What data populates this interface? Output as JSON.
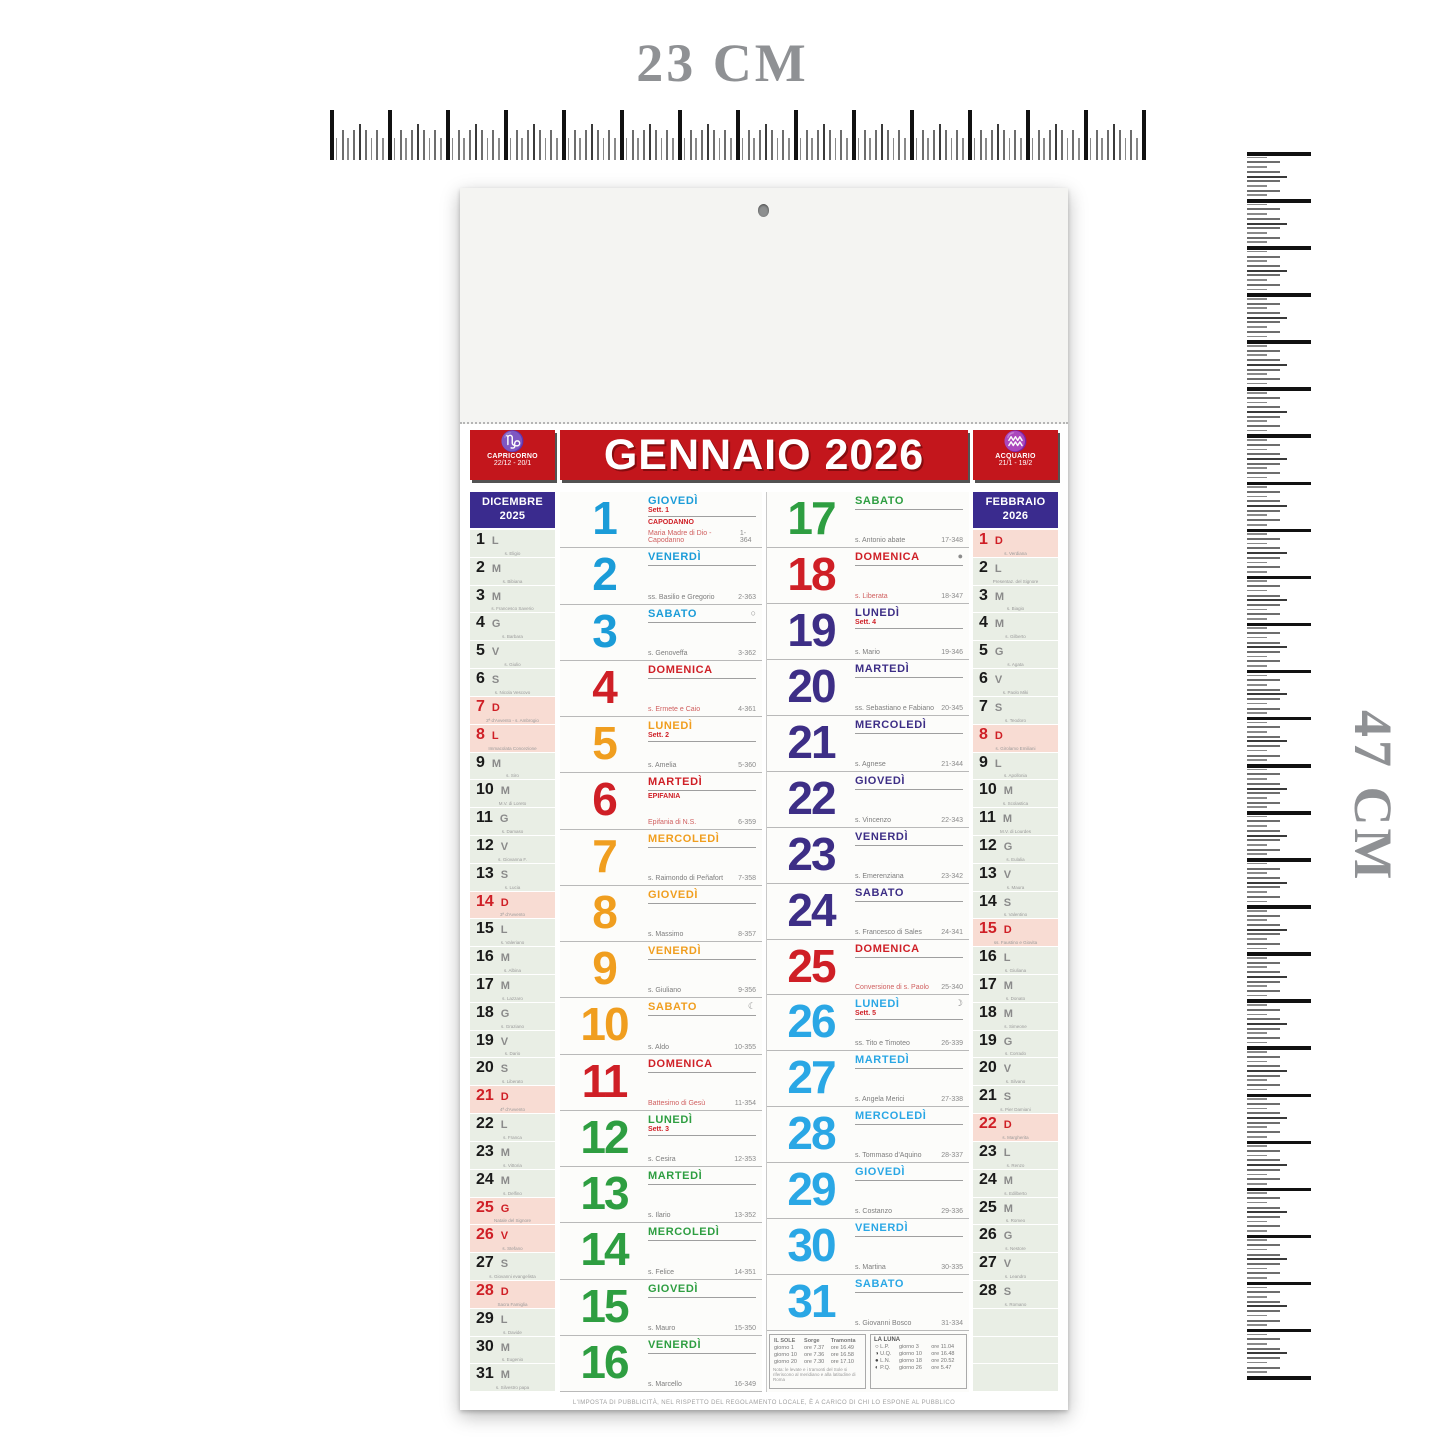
{
  "measurements": {
    "top_label": "23 CM",
    "side_label": "47 CM"
  },
  "colors": {
    "blue": "#1b9cd8",
    "orange": "#f09e1f",
    "green": "#2e9e41",
    "purple": "#3d2e86",
    "cyan": "#2aa7e5",
    "red": "#cf1f26",
    "banner_red": "#c3161c",
    "side_header_purple": "#3a2b8e",
    "side_cell_green": "#e9eee5",
    "side_cell_pink": "#f8dcd3"
  },
  "calendar": {
    "title": "GENNAIO 2026",
    "zodiac_left": {
      "symbol": "♑",
      "name": "CAPRICORNO",
      "dates": "22/12 - 20/1"
    },
    "zodiac_right": {
      "symbol": "♒",
      "name": "ACQUARIO",
      "dates": "21/1 - 19/2"
    },
    "footer": "L'IMPOSTA DI PUBBLICITÀ, NEL RISPETTO DEL REGOLAMENTO LOCALE, È A CARICO DI CHI LO ESPONE AL PUBBLICO",
    "days": [
      {
        "n": 1,
        "name": "GIOVEDÌ",
        "color": "blue",
        "week": "Sett. 1",
        "holiday": "CAPODANNO",
        "saint": "Maria Madre di Dio - Capodanno",
        "count": "1-364",
        "red_saint": true
      },
      {
        "n": 2,
        "name": "VENERDÌ",
        "color": "blue",
        "saint": "ss. Basilio e Gregorio",
        "count": "2-363"
      },
      {
        "n": 3,
        "name": "SABATO",
        "color": "blue",
        "moon": "○",
        "saint": "s. Genoveffa",
        "count": "3-362"
      },
      {
        "n": 4,
        "name": "DOMENICA",
        "color": "red",
        "saint": "s. Ermete e Caio",
        "count": "4-361",
        "red_saint": true
      },
      {
        "n": 5,
        "name": "LUNEDÌ",
        "color": "orange",
        "week": "Sett. 2",
        "saint": "s. Amelia",
        "count": "5-360"
      },
      {
        "n": 6,
        "name": "MARTEDÌ",
        "color": "red",
        "holiday": "EPIFANIA",
        "saint": "Epifania di N.S.",
        "count": "6-359",
        "red_saint": true
      },
      {
        "n": 7,
        "name": "MERCOLEDÌ",
        "color": "orange",
        "saint": "s. Raimondo di Peñafort",
        "count": "7-358"
      },
      {
        "n": 8,
        "name": "GIOVEDÌ",
        "color": "orange",
        "saint": "s. Massimo",
        "count": "8-357"
      },
      {
        "n": 9,
        "name": "VENERDÌ",
        "color": "orange",
        "saint": "s. Giuliano",
        "count": "9-356"
      },
      {
        "n": 10,
        "name": "SABATO",
        "color": "orange",
        "moon": "☾",
        "saint": "s. Aldo",
        "count": "10-355"
      },
      {
        "n": 11,
        "name": "DOMENICA",
        "color": "red",
        "saint": "Battesimo di Gesù",
        "count": "11-354",
        "red_saint": true
      },
      {
        "n": 12,
        "name": "LUNEDÌ",
        "color": "green",
        "week": "Sett. 3",
        "saint": "s. Cesira",
        "count": "12-353"
      },
      {
        "n": 13,
        "name": "MARTEDÌ",
        "color": "green",
        "saint": "s. Ilario",
        "count": "13-352"
      },
      {
        "n": 14,
        "name": "MERCOLEDÌ",
        "color": "green",
        "saint": "s. Felice",
        "count": "14-351"
      },
      {
        "n": 15,
        "name": "GIOVEDÌ",
        "color": "green",
        "saint": "s. Mauro",
        "count": "15-350"
      },
      {
        "n": 16,
        "name": "VENERDÌ",
        "color": "green",
        "saint": "s. Marcello",
        "count": "16-349"
      },
      {
        "n": 17,
        "name": "SABATO",
        "color": "green",
        "saint": "s. Antonio abate",
        "count": "17-348"
      },
      {
        "n": 18,
        "name": "DOMENICA",
        "color": "red",
        "moon": "●",
        "saint": "s. Liberata",
        "count": "18-347",
        "red_saint": true
      },
      {
        "n": 19,
        "name": "LUNEDÌ",
        "color": "purple",
        "week": "Sett. 4",
        "saint": "s. Mario",
        "count": "19-346"
      },
      {
        "n": 20,
        "name": "MARTEDÌ",
        "color": "purple",
        "saint": "ss. Sebastiano e Fabiano",
        "count": "20-345"
      },
      {
        "n": 21,
        "name": "MERCOLEDÌ",
        "color": "purple",
        "saint": "s. Agnese",
        "count": "21-344"
      },
      {
        "n": 22,
        "name": "GIOVEDÌ",
        "color": "purple",
        "saint": "s. Vincenzo",
        "count": "22-343"
      },
      {
        "n": 23,
        "name": "VENERDÌ",
        "color": "purple",
        "saint": "s. Emerenziana",
        "count": "23-342"
      },
      {
        "n": 24,
        "name": "SABATO",
        "color": "purple",
        "saint": "s. Francesco di Sales",
        "count": "24-341"
      },
      {
        "n": 25,
        "name": "DOMENICA",
        "color": "red",
        "saint": "Conversione di s. Paolo",
        "count": "25-340",
        "red_saint": true
      },
      {
        "n": 26,
        "name": "LUNEDÌ",
        "color": "cyan",
        "week": "Sett. 5",
        "moon": "☽",
        "saint": "ss. Tito e Timoteo",
        "count": "26-339"
      },
      {
        "n": 27,
        "name": "MARTEDÌ",
        "color": "cyan",
        "saint": "s. Angela Merici",
        "count": "27-338"
      },
      {
        "n": 28,
        "name": "MERCOLEDÌ",
        "color": "cyan",
        "saint": "s. Tommaso d'Aquino",
        "count": "28-337"
      },
      {
        "n": 29,
        "name": "GIOVEDÌ",
        "color": "cyan",
        "saint": "s. Costanzo",
        "count": "29-336"
      },
      {
        "n": 30,
        "name": "VENERDÌ",
        "color": "cyan",
        "saint": "s. Martina",
        "count": "30-335"
      },
      {
        "n": 31,
        "name": "SABATO",
        "color": "cyan",
        "saint": "s. Giovanni Bosco",
        "count": "31-334"
      }
    ],
    "side_left": {
      "title": "DICEMBRE",
      "year": "2025",
      "days": [
        {
          "n": 1,
          "l": "L",
          "s": "s. Eligio"
        },
        {
          "n": 2,
          "l": "M",
          "s": "s. Bibiana"
        },
        {
          "n": 3,
          "l": "M",
          "s": "s. Francesco Saverio"
        },
        {
          "n": 4,
          "l": "G",
          "s": "s. Barbara"
        },
        {
          "n": 5,
          "l": "V",
          "s": "s. Giulio"
        },
        {
          "n": 6,
          "l": "S",
          "s": "s. Nicola Vescovo"
        },
        {
          "n": 7,
          "l": "D",
          "s": "2ª d'Avvento - s. Ambrogio",
          "red": true
        },
        {
          "n": 8,
          "l": "L",
          "s": "Immacolata Concezione",
          "red": true
        },
        {
          "n": 9,
          "l": "M",
          "s": "s. Siro"
        },
        {
          "n": 10,
          "l": "M",
          "s": "M.V. di Loreto"
        },
        {
          "n": 11,
          "l": "G",
          "s": "s. Damaso"
        },
        {
          "n": 12,
          "l": "V",
          "s": "s. Giovanna F."
        },
        {
          "n": 13,
          "l": "S",
          "s": "s. Lucia"
        },
        {
          "n": 14,
          "l": "D",
          "s": "3ª d'Avvento",
          "red": true
        },
        {
          "n": 15,
          "l": "L",
          "s": "s. Valeriano"
        },
        {
          "n": 16,
          "l": "M",
          "s": "s. Albina"
        },
        {
          "n": 17,
          "l": "M",
          "s": "s. Lazzaro"
        },
        {
          "n": 18,
          "l": "G",
          "s": "s. Graziano"
        },
        {
          "n": 19,
          "l": "V",
          "s": "s. Dario"
        },
        {
          "n": 20,
          "l": "S",
          "s": "s. Liberato"
        },
        {
          "n": 21,
          "l": "D",
          "s": "4ª d'Avvento",
          "red": true
        },
        {
          "n": 22,
          "l": "L",
          "s": "s. Franca"
        },
        {
          "n": 23,
          "l": "M",
          "s": "s. Vittoria"
        },
        {
          "n": 24,
          "l": "M",
          "s": "s. Delfino"
        },
        {
          "n": 25,
          "l": "G",
          "s": "Natale del Signore",
          "red": true
        },
        {
          "n": 26,
          "l": "V",
          "s": "s. Stefano",
          "red": true
        },
        {
          "n": 27,
          "l": "S",
          "s": "s. Giovanni evangelista"
        },
        {
          "n": 28,
          "l": "D",
          "s": "Sacra Famiglia",
          "red": true
        },
        {
          "n": 29,
          "l": "L",
          "s": "s. Davide"
        },
        {
          "n": 30,
          "l": "M",
          "s": "s. Eugenio"
        },
        {
          "n": 31,
          "l": "M",
          "s": "s. Silvestro papa"
        }
      ],
      "empty_rows": 0
    },
    "side_right": {
      "title": "FEBBRAIO",
      "year": "2026",
      "days": [
        {
          "n": 1,
          "l": "D",
          "s": "s. Verdiana",
          "red": true
        },
        {
          "n": 2,
          "l": "L",
          "s": "Presentaz. del Signore"
        },
        {
          "n": 3,
          "l": "M",
          "s": "s. Biagio"
        },
        {
          "n": 4,
          "l": "M",
          "s": "s. Gilberto"
        },
        {
          "n": 5,
          "l": "G",
          "s": "s. Agata"
        },
        {
          "n": 6,
          "l": "V",
          "s": "s. Paolo Miki"
        },
        {
          "n": 7,
          "l": "S",
          "s": "s. Teodoro"
        },
        {
          "n": 8,
          "l": "D",
          "s": "s. Girolamo Emiliani",
          "red": true
        },
        {
          "n": 9,
          "l": "L",
          "s": "s. Apollonia"
        },
        {
          "n": 10,
          "l": "M",
          "s": "s. Scolastica"
        },
        {
          "n": 11,
          "l": "M",
          "s": "M.V. di Lourdes"
        },
        {
          "n": 12,
          "l": "G",
          "s": "s. Eulalia"
        },
        {
          "n": 13,
          "l": "V",
          "s": "s. Maura"
        },
        {
          "n": 14,
          "l": "S",
          "s": "s. Valentino"
        },
        {
          "n": 15,
          "l": "D",
          "s": "ss. Faustino e Giovita",
          "red": true
        },
        {
          "n": 16,
          "l": "L",
          "s": "s. Giuliana"
        },
        {
          "n": 17,
          "l": "M",
          "s": "s. Donato"
        },
        {
          "n": 18,
          "l": "M",
          "s": "s. Simeone"
        },
        {
          "n": 19,
          "l": "G",
          "s": "s. Corrado"
        },
        {
          "n": 20,
          "l": "V",
          "s": "s. Silvano"
        },
        {
          "n": 21,
          "l": "S",
          "s": "s. Pier Damiani"
        },
        {
          "n": 22,
          "l": "D",
          "s": "s. Margherita",
          "red": true
        },
        {
          "n": 23,
          "l": "L",
          "s": "s. Renzo"
        },
        {
          "n": 24,
          "l": "M",
          "s": "s. Edilberto"
        },
        {
          "n": 25,
          "l": "M",
          "s": "s. Romeo"
        },
        {
          "n": 26,
          "l": "G",
          "s": "s. Nestore"
        },
        {
          "n": 27,
          "l": "V",
          "s": "s. Leandro"
        },
        {
          "n": 28,
          "l": "S",
          "s": "s. Romano"
        }
      ],
      "empty_rows": 3
    },
    "legend_sun": {
      "title": "IL SOLE",
      "col_rise": "Sorge",
      "col_set": "Tramonta",
      "rows": [
        [
          "giorno 1",
          "ore 7.37",
          "ore 16.49"
        ],
        [
          "giorno 10",
          "ore 7.36",
          "ore 16.58"
        ],
        [
          "giorno 20",
          "ore 7.30",
          "ore 17.10"
        ]
      ],
      "note": "Nota: le levate e i tramonti del Sole si riferiscono al meridiano e alla latitudine di Roma"
    },
    "legend_moon": {
      "title": "LA LUNA",
      "rows": [
        {
          "icon": "○",
          "label": "L.P.",
          "day": "giorno 3",
          "time": "ore 11.04"
        },
        {
          "icon": "◑",
          "label": "U.Q.",
          "day": "giorno 10",
          "time": "ore 16.48"
        },
        {
          "icon": "●",
          "label": "L.N.",
          "day": "giorno 18",
          "time": "ore 20.52"
        },
        {
          "icon": "◐",
          "label": "P.Q.",
          "day": "giorno 26",
          "time": "ore 5.47"
        }
      ]
    }
  }
}
